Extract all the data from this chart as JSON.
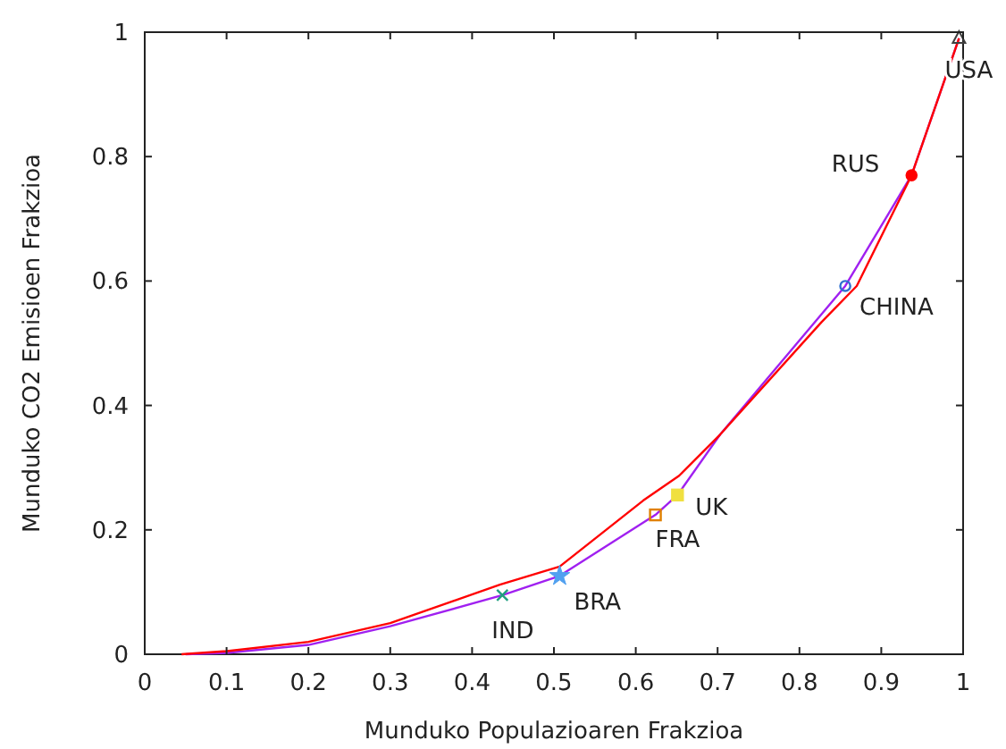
{
  "chart_data": {
    "type": "line",
    "xlabel": "Munduko Populazioaren Frakzioa",
    "ylabel": "Munduko CO2 Emisioen Frakzioa",
    "xlim": [
      0,
      1
    ],
    "ylim": [
      0,
      1
    ],
    "xticks": [
      0,
      0.1,
      0.2,
      0.3,
      0.4,
      0.5,
      0.6,
      0.7,
      0.8,
      0.9,
      1
    ],
    "yticks": [
      0,
      0.2,
      0.4,
      0.6,
      0.8,
      1
    ],
    "grid": false,
    "series": [
      {
        "color": "#a020f0",
        "x": [
          0.05,
          0.1,
          0.2,
          0.3,
          0.437,
          0.507,
          0.624,
          0.651,
          0.703,
          0.856,
          0.937,
          0.995
        ],
        "values": [
          0,
          0.002,
          0.015,
          0.045,
          0.095,
          0.126,
          0.224,
          0.256,
          0.353,
          0.592,
          0.77,
          0.99
        ]
      },
      {
        "color": "#ff0000",
        "x": [
          0.045,
          0.1,
          0.2,
          0.3,
          0.434,
          0.507,
          0.609,
          0.653,
          0.703,
          0.827,
          0.87,
          0.937,
          0.995
        ],
        "values": [
          0,
          0.005,
          0.02,
          0.05,
          0.112,
          0.141,
          0.247,
          0.287,
          0.353,
          0.534,
          0.592,
          0.77,
          0.99
        ]
      },
      {
        "type": "scatter",
        "name": "USA",
        "color": "#404040",
        "marker": "triangle",
        "x": [
          0.995
        ],
        "values": [
          0.99
        ]
      },
      {
        "type": "scatter",
        "name": "RUS",
        "color": "#ff0000",
        "marker": "circle",
        "x": [
          0.937
        ],
        "values": [
          0.77
        ]
      },
      {
        "type": "scatter",
        "name": "CHINA",
        "color": "#3070d0",
        "marker": "circle",
        "x": [
          0.856
        ],
        "values": [
          0.592
        ]
      },
      {
        "type": "scatter",
        "name": "UK",
        "color": "#f0e040",
        "marker": "square",
        "x": [
          0.651
        ],
        "values": [
          0.256
        ]
      },
      {
        "type": "scatter",
        "name": "FRA",
        "color": "#e08000",
        "marker": "square",
        "x": [
          0.624
        ],
        "values": [
          0.224
        ]
      },
      {
        "type": "scatter",
        "name": "BRA",
        "color": "#50a0f0",
        "marker": "star",
        "x": [
          0.507
        ],
        "values": [
          0.126
        ]
      },
      {
        "type": "scatter",
        "name": "IND",
        "color": "#20a080",
        "marker": "cross",
        "x": [
          0.437
        ],
        "values": [
          0.095
        ]
      }
    ]
  }
}
